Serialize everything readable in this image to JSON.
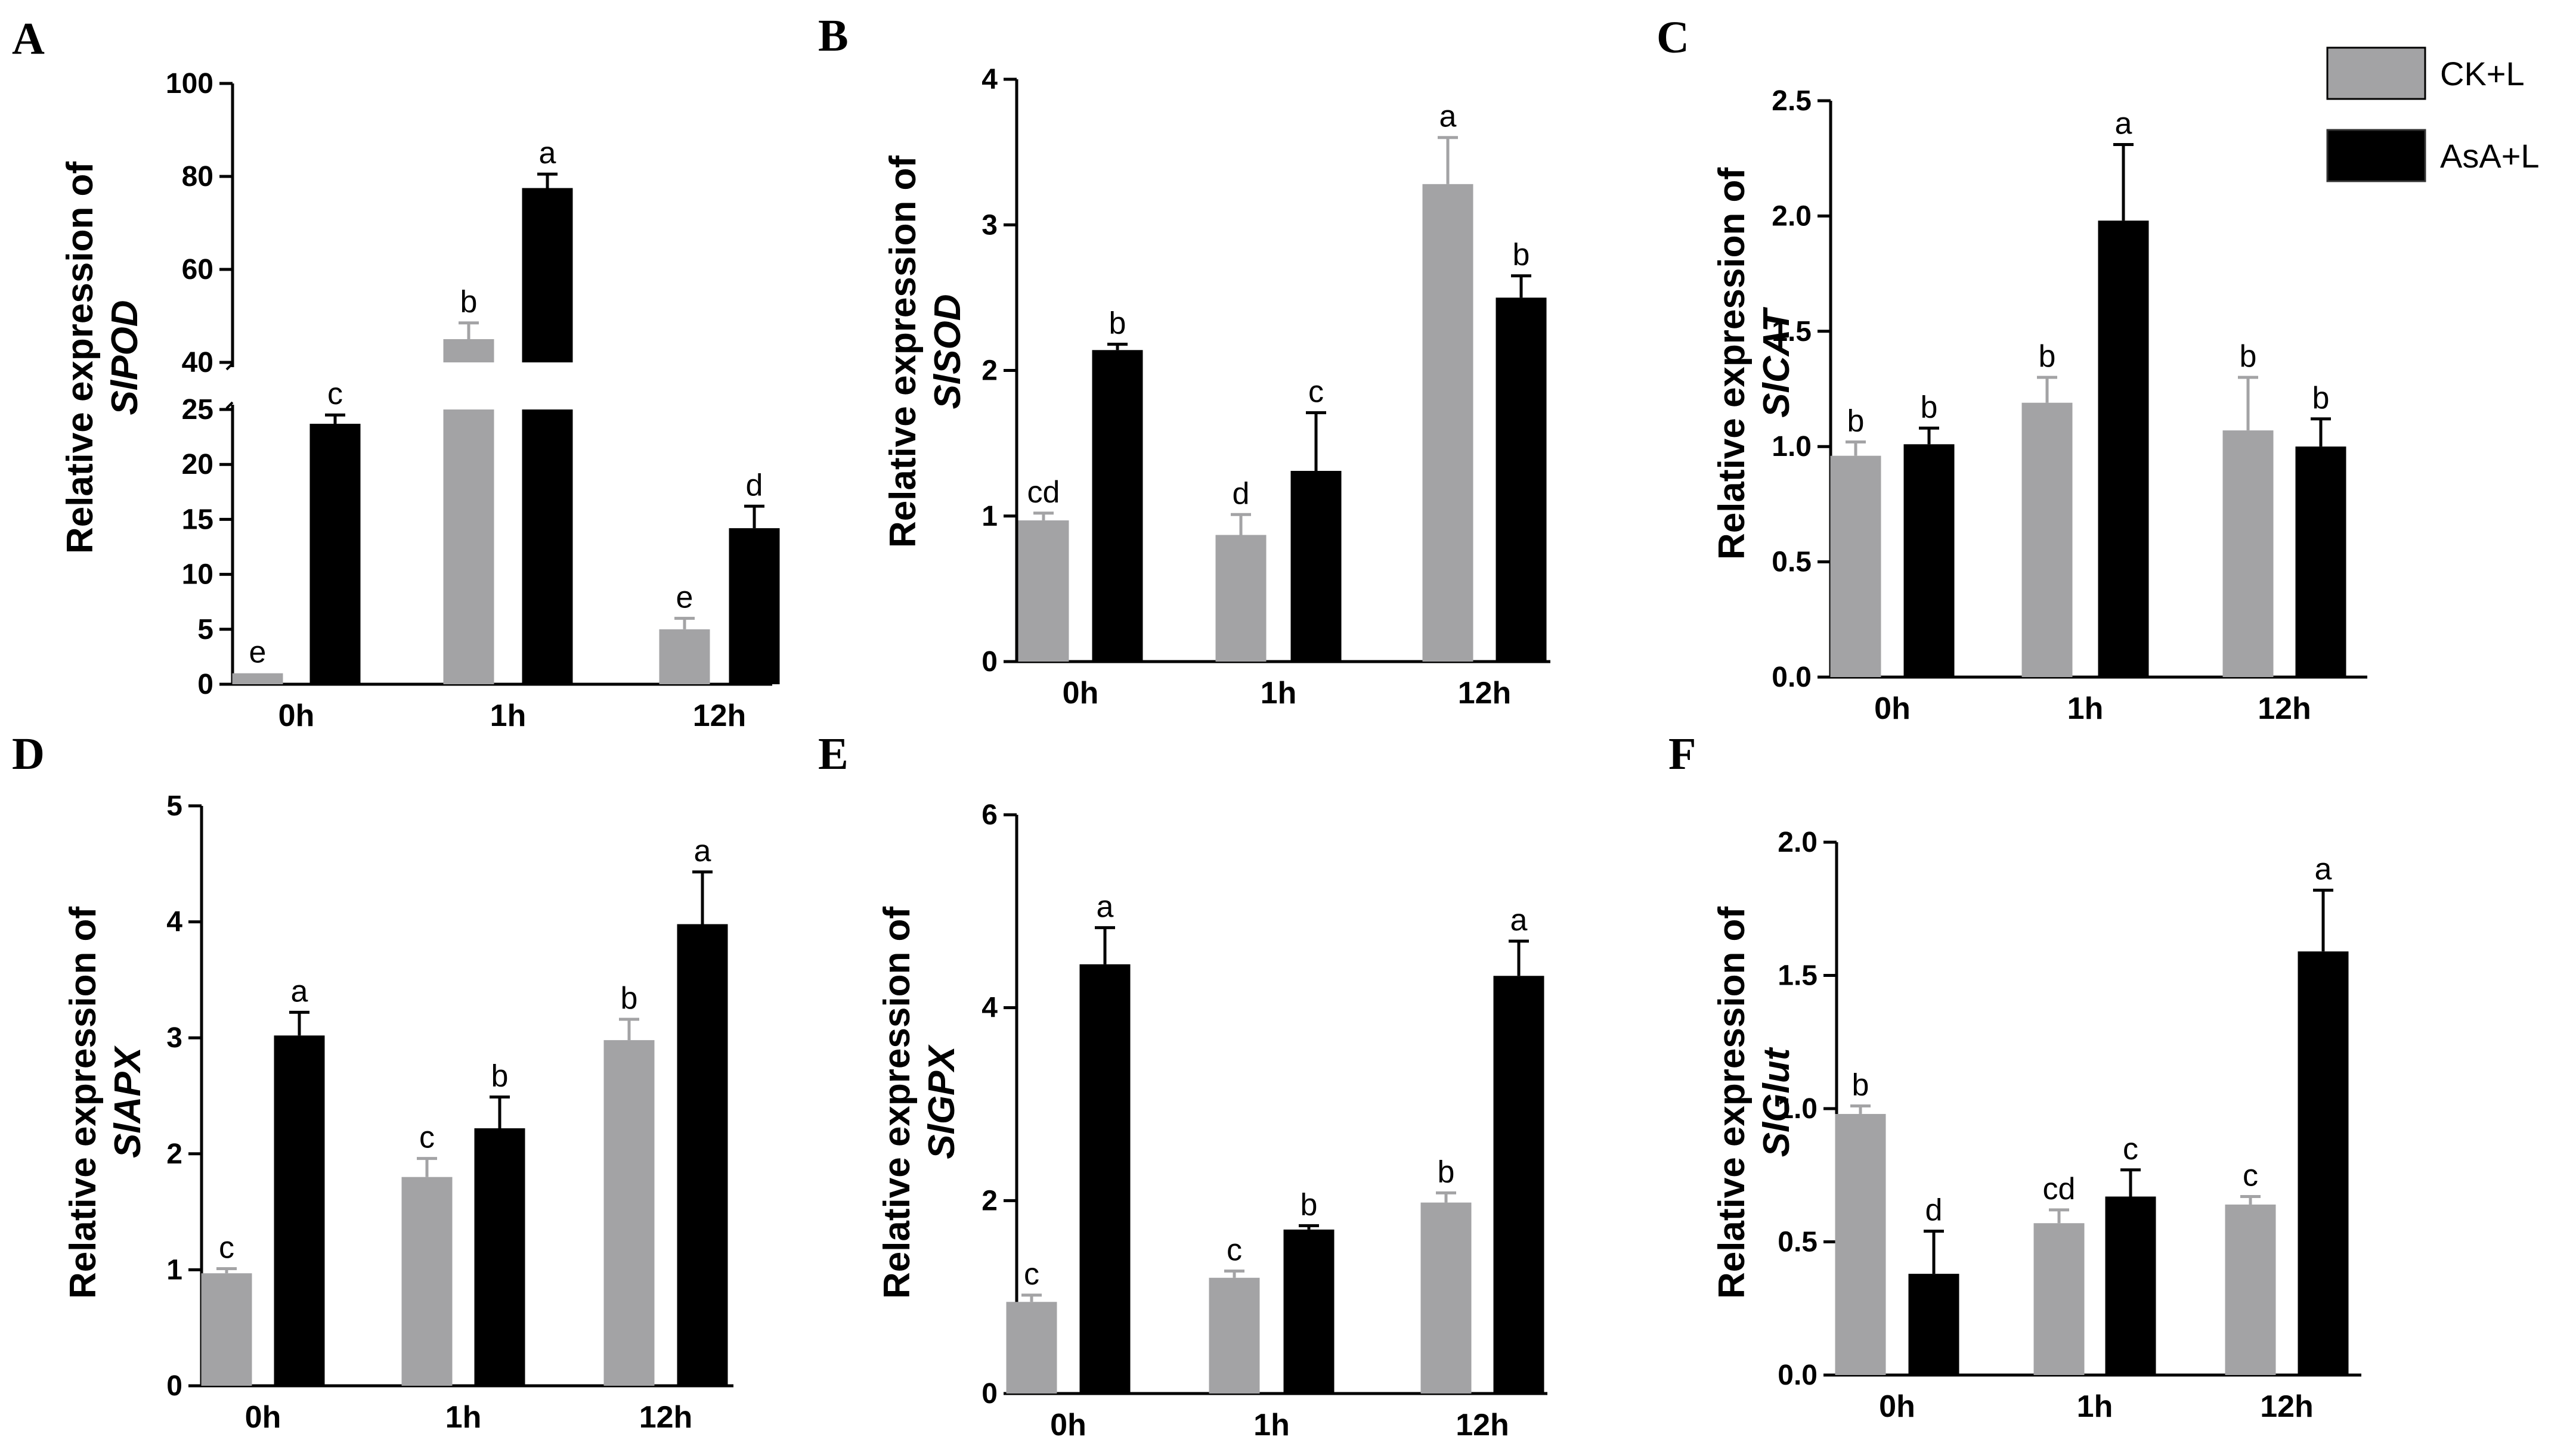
{
  "colors": {
    "ck": "#a3a3a5",
    "asa": "#000000",
    "axis": "#000000"
  },
  "legend": {
    "entries": [
      {
        "label": "CK+L",
        "series": "ck"
      },
      {
        "label": "AsA+L",
        "series": "asa"
      }
    ]
  },
  "chart_data": [
    {
      "panel": "A",
      "type": "bar",
      "gene": "SlPOD",
      "ylabel_line1": "Relative expression of",
      "ylabel_gene": "SlPOD",
      "categories": [
        "0h",
        "1h",
        "12h"
      ],
      "axis_break": {
        "lower": [
          0,
          25
        ],
        "upper": [
          40,
          100
        ]
      },
      "lower_ticks": [
        0,
        5,
        10,
        15,
        20,
        25
      ],
      "upper_ticks": [
        40,
        60,
        80,
        100
      ],
      "series": [
        {
          "name": "CK+L",
          "values": [
            1,
            45,
            5
          ],
          "errors": [
            0,
            3.5,
            1.0
          ],
          "letters": [
            "e",
            "b",
            "e"
          ]
        },
        {
          "name": "AsA+L",
          "values": [
            23.7,
            77.5,
            14.2
          ],
          "errors": [
            0.8,
            3,
            2.0
          ],
          "letters": [
            "c",
            "a",
            "d"
          ]
        }
      ]
    },
    {
      "panel": "B",
      "type": "bar",
      "gene": "SlSOD",
      "ylabel_line1": "Relative expression of",
      "ylabel_gene": "SlSOD",
      "categories": [
        "0h",
        "1h",
        "12h"
      ],
      "ylim": [
        0,
        4
      ],
      "ticks": [
        0,
        1,
        2,
        3,
        4
      ],
      "series": [
        {
          "name": "CK+L",
          "values": [
            0.97,
            0.87,
            3.28
          ],
          "errors": [
            0.05,
            0.14,
            0.32
          ],
          "letters": [
            "cd",
            "d",
            "a"
          ]
        },
        {
          "name": "AsA+L",
          "values": [
            2.14,
            1.31,
            2.5
          ],
          "errors": [
            0.04,
            0.4,
            0.15
          ],
          "letters": [
            "b",
            "c",
            "b"
          ]
        }
      ]
    },
    {
      "panel": "C",
      "type": "bar",
      "gene": "SlCAT",
      "ylabel_line1": "Relative expression of",
      "ylabel_gene": "SlCAT",
      "categories": [
        "0h",
        "1h",
        "12h"
      ],
      "ylim": [
        0,
        2.5
      ],
      "ticks": [
        "0.0",
        "0.5",
        "1.0",
        "1.5",
        "2.0",
        "2.5"
      ],
      "series": [
        {
          "name": "CK+L",
          "values": [
            0.96,
            1.19,
            1.07
          ],
          "errors": [
            0.06,
            0.11,
            0.23
          ],
          "letters": [
            "b",
            "b",
            "b"
          ]
        },
        {
          "name": "AsA+L",
          "values": [
            1.01,
            1.98,
            1.0
          ],
          "errors": [
            0.07,
            0.33,
            0.12
          ],
          "letters": [
            "b",
            "a",
            "b"
          ]
        }
      ]
    },
    {
      "panel": "D",
      "type": "bar",
      "gene": "SlAPX",
      "ylabel_line1": "Relative expression of",
      "ylabel_gene": "SlAPX",
      "categories": [
        "0h",
        "1h",
        "12h"
      ],
      "ylim": [
        0,
        5
      ],
      "ticks": [
        0,
        1,
        2,
        3,
        4,
        5
      ],
      "series": [
        {
          "name": "CK+L",
          "values": [
            0.97,
            1.8,
            2.98
          ],
          "errors": [
            0.04,
            0.16,
            0.18
          ],
          "letters": [
            "c",
            "c",
            "b"
          ]
        },
        {
          "name": "AsA+L",
          "values": [
            3.02,
            2.22,
            3.98
          ],
          "errors": [
            0.2,
            0.27,
            0.45
          ],
          "letters": [
            "a",
            "b",
            "a"
          ]
        }
      ]
    },
    {
      "panel": "E",
      "type": "bar",
      "gene": "SlGPX",
      "ylabel_line1": "Relative expression of",
      "ylabel_gene": "SlGPX",
      "categories": [
        "0h",
        "1h",
        "12h"
      ],
      "ylim": [
        0,
        6
      ],
      "ticks": [
        0,
        2,
        4,
        6
      ],
      "series": [
        {
          "name": "CK+L",
          "values": [
            0.95,
            1.2,
            1.98
          ],
          "errors": [
            0.07,
            0.07,
            0.1
          ],
          "letters": [
            "c",
            "c",
            "b"
          ]
        },
        {
          "name": "AsA+L",
          "values": [
            4.45,
            1.7,
            4.33
          ],
          "errors": [
            0.38,
            0.04,
            0.36
          ],
          "letters": [
            "a",
            "b",
            "a"
          ]
        }
      ]
    },
    {
      "panel": "F",
      "type": "bar",
      "gene": "SlGlut",
      "ylabel_line1": "Relative expression of",
      "ylabel_gene": "SlGlut",
      "categories": [
        "0h",
        "1h",
        "12h"
      ],
      "ylim": [
        0,
        2
      ],
      "ticks": [
        "0.0",
        "0.5",
        "1.0",
        "1.5",
        "2.0"
      ],
      "series": [
        {
          "name": "CK+L",
          "values": [
            0.98,
            0.57,
            0.64
          ],
          "errors": [
            0.03,
            0.05,
            0.03
          ],
          "letters": [
            "b",
            "cd",
            "c"
          ]
        },
        {
          "name": "AsA+L",
          "values": [
            0.38,
            0.67,
            1.59
          ],
          "errors": [
            0.16,
            0.1,
            0.23
          ],
          "letters": [
            "d",
            "c",
            "a"
          ]
        }
      ]
    }
  ]
}
